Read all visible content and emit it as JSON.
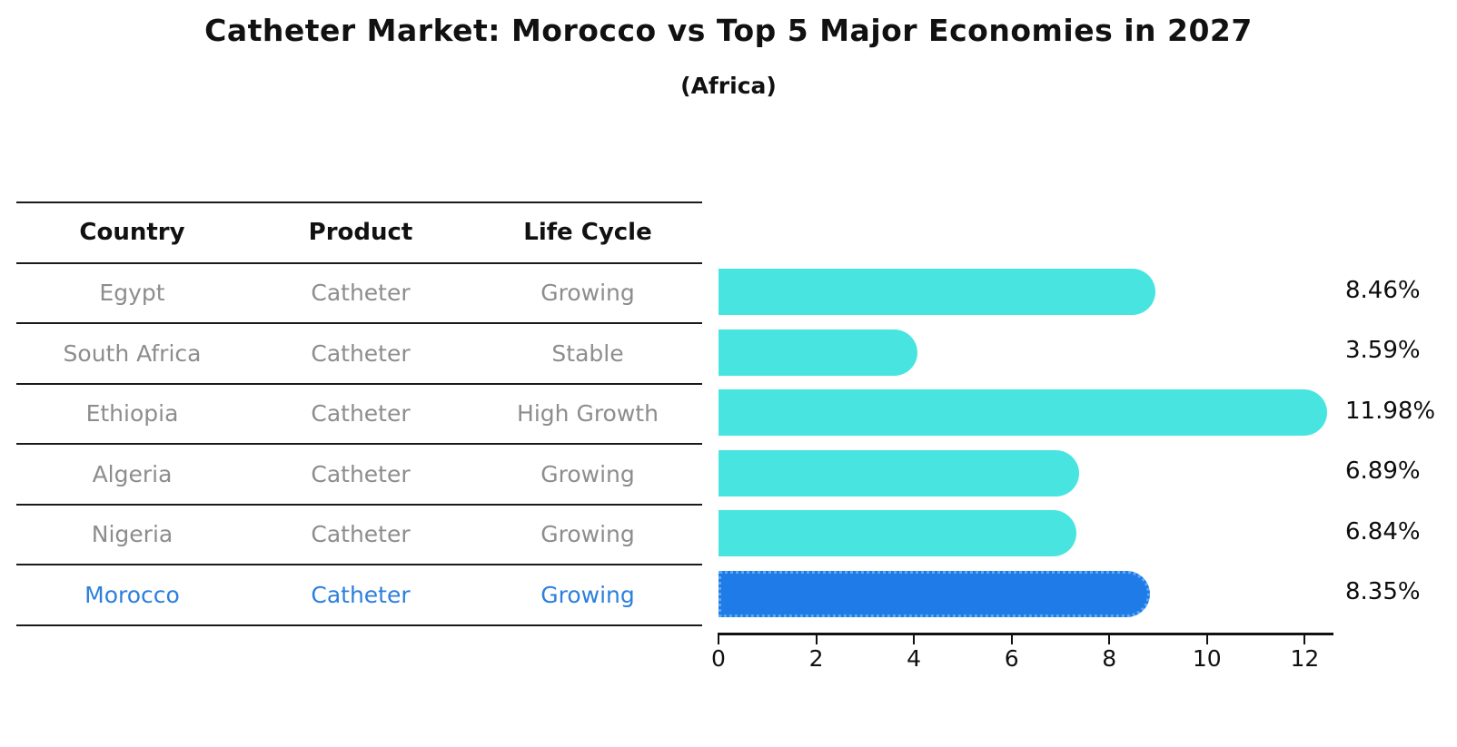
{
  "header": {
    "title": "Catheter Market: Morocco vs Top 5 Major Economies in 2027",
    "subtitle": "(Africa)"
  },
  "table": {
    "columns": [
      "Country",
      "Product",
      "Life Cycle"
    ],
    "rows": [
      {
        "country": "Egypt",
        "product": "Catheter",
        "life_cycle": "Growing",
        "highlight": false
      },
      {
        "country": "South Africa",
        "product": "Catheter",
        "life_cycle": "Stable",
        "highlight": false
      },
      {
        "country": "Ethiopia",
        "product": "Catheter",
        "life_cycle": "High Growth",
        "highlight": false
      },
      {
        "country": "Algeria",
        "product": "Catheter",
        "life_cycle": "Growing",
        "highlight": false
      },
      {
        "country": "Nigeria",
        "product": "Catheter",
        "life_cycle": "Growing",
        "highlight": false
      },
      {
        "country": "Morocco",
        "product": "Catheter",
        "life_cycle": "Growing",
        "highlight": true
      }
    ]
  },
  "chart_data": {
    "type": "bar",
    "orientation": "horizontal",
    "title": "Catheter Market: Morocco vs Top 5 Major Economies in 2027",
    "subtitle": "(Africa)",
    "categories": [
      "Egypt",
      "South Africa",
      "Ethiopia",
      "Algeria",
      "Nigeria",
      "Morocco"
    ],
    "values": [
      8.46,
      3.59,
      11.98,
      6.89,
      6.84,
      8.35
    ],
    "value_labels": [
      "8.46%",
      "3.59%",
      "11.98%",
      "6.89%",
      "6.84%",
      "8.35%"
    ],
    "unit": "percent",
    "xticks": [
      "0",
      "2",
      "4",
      "6",
      "8",
      "10",
      "12"
    ],
    "xtick_values": [
      0,
      2,
      4,
      6,
      8,
      10,
      12
    ],
    "xlim": [
      0,
      12.57
    ],
    "grid": false,
    "legend": "none",
    "bar_color": "#48e5e0",
    "highlight_color": "#1e7be8",
    "highlight_border_color": "#5fa9f2",
    "highlight_index": 5,
    "highlight_text_color": "#2b7fde",
    "row_text_color": "#8d8d8d"
  }
}
